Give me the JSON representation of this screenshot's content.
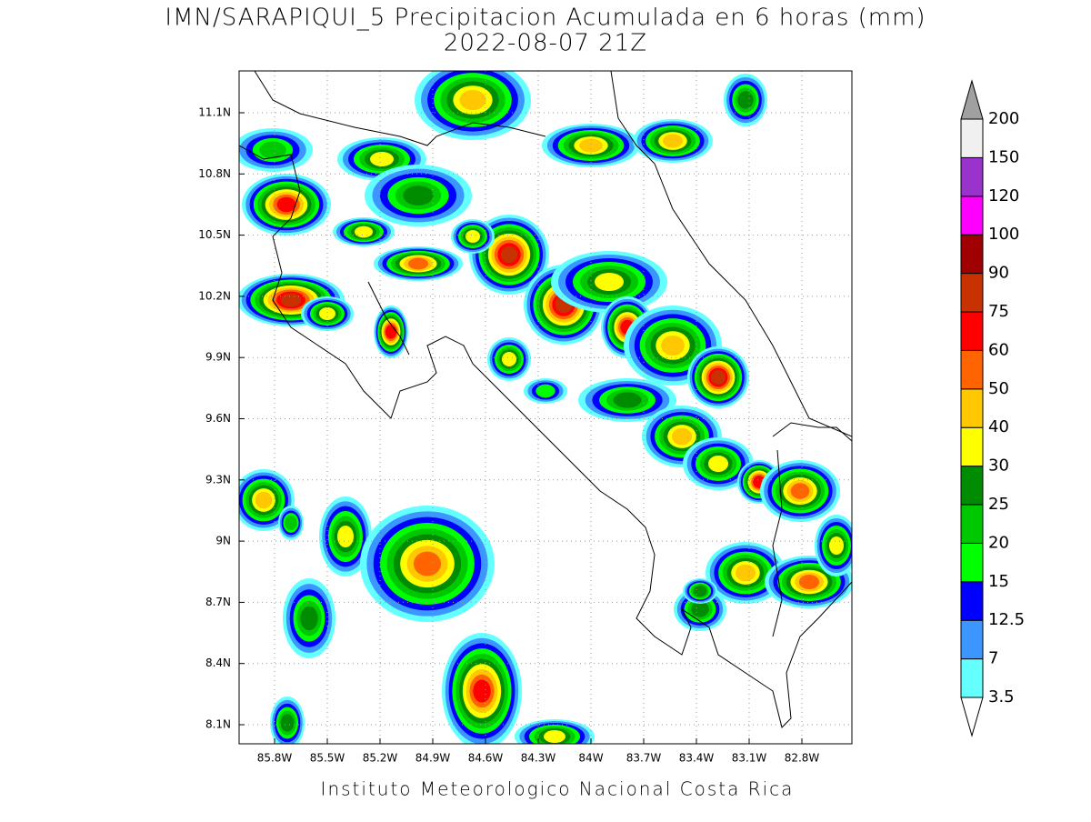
{
  "map": {
    "title": "IMN/SARAPIQUI_5 Precipitacion Acumulada en 6 horas (mm)",
    "subtitle": "2022-08-07 21Z",
    "x_tick_labels": [
      "85.8W",
      "85.5W",
      "85.2W",
      "84.9W",
      "84.6W",
      "84.3W",
      "84W",
      "83.7W",
      "83.4W",
      "83.1W",
      "82.8W"
    ],
    "y_tick_labels": [
      "11.1N",
      "10.8N",
      "10.5N",
      "10.2N",
      "9.9N",
      "9.6N",
      "9.3N",
      "9N",
      "8.7N",
      "8.4N",
      "8.1N"
    ],
    "colorbar": {
      "levels": [
        3.5,
        7,
        12.5,
        15,
        20,
        25,
        30,
        40,
        50,
        60,
        75,
        90,
        100,
        120,
        150,
        200
      ],
      "colors": [
        "#64ffff",
        "#3c96ff",
        "#0000ff",
        "#00ff00",
        "#00c800",
        "#008c00",
        "#ffff00",
        "#ffc800",
        "#ff6400",
        "#ff0000",
        "#c83200",
        "#a00000",
        "#ff00ff",
        "#9933cc",
        "#f0f0f0"
      ],
      "over_color": "#a0a0a0",
      "under_color": "#ffffff"
    },
    "footer": "Instituto Meteorologico Nacional Costa Rica"
  }
}
